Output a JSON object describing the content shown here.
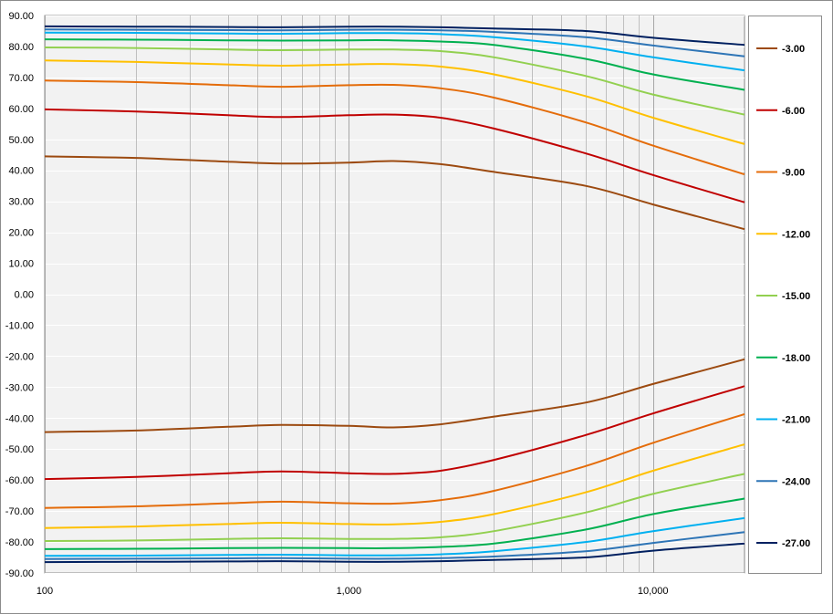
{
  "chart_data": {
    "type": "line",
    "x_scale": "log",
    "xlim": [
      100,
      20000
    ],
    "ylim": [
      -90,
      90
    ],
    "grid": true,
    "legend_position": "right",
    "title": "",
    "xlabel": "",
    "ylabel": "",
    "x_tick_labels": [
      {
        "value": 100,
        "label": "100"
      },
      {
        "value": 1000,
        "label": "1,000"
      },
      {
        "value": 10000,
        "label": "10,000"
      }
    ],
    "y_tick_labels": [
      {
        "value": 90,
        "label": "90.00"
      },
      {
        "value": 80,
        "label": "80.00"
      },
      {
        "value": 70,
        "label": "70.00"
      },
      {
        "value": 60,
        "label": "60.00"
      },
      {
        "value": 50,
        "label": "50.00"
      },
      {
        "value": 40,
        "label": "40.00"
      },
      {
        "value": 30,
        "label": "30.00"
      },
      {
        "value": 20,
        "label": "20.00"
      },
      {
        "value": 10,
        "label": "10.00"
      },
      {
        "value": 0,
        "label": "0.00"
      },
      {
        "value": -10,
        "label": "-10.00"
      },
      {
        "value": -20,
        "label": "-20.00"
      },
      {
        "value": -30,
        "label": "-30.00"
      },
      {
        "value": -40,
        "label": "-40.00"
      },
      {
        "value": -50,
        "label": "-50.00"
      },
      {
        "value": -60,
        "label": "-60.00"
      },
      {
        "value": -70,
        "label": "-70.00"
      },
      {
        "value": -80,
        "label": "-80.00"
      },
      {
        "value": -90,
        "label": "-90.00"
      }
    ],
    "x": [
      100,
      200,
      400,
      600,
      1000,
      1400,
      2000,
      3000,
      6000,
      10000,
      20000
    ],
    "series": [
      {
        "name": "-3.00",
        "color": "#9C4A10",
        "values": [
          44.5,
          44.0,
          42.8,
          42.2,
          42.5,
          43.0,
          42.0,
          39.5,
          35.0,
          29.0,
          21.0
        ]
      },
      {
        "name": "-6.00",
        "color": "#C00000",
        "values": [
          59.7,
          59.0,
          57.8,
          57.2,
          57.8,
          58.0,
          57.0,
          53.5,
          45.5,
          38.5,
          29.7
        ]
      },
      {
        "name": "-9.00",
        "color": "#E46C0A",
        "values": [
          69.0,
          68.5,
          67.5,
          67.0,
          67.5,
          67.6,
          66.5,
          63.5,
          55.5,
          48.0,
          38.7
        ]
      },
      {
        "name": "-12.00",
        "color": "#FFC000",
        "values": [
          75.5,
          75.0,
          74.2,
          73.8,
          74.2,
          74.3,
          73.5,
          71.0,
          64.0,
          57.0,
          48.5
        ]
      },
      {
        "name": "-15.00",
        "color": "#92D050",
        "values": [
          79.7,
          79.5,
          79.0,
          78.8,
          79.0,
          79.0,
          78.5,
          76.5,
          70.5,
          64.5,
          58.0
        ]
      },
      {
        "name": "-18.00",
        "color": "#00B050",
        "values": [
          82.3,
          82.2,
          82.0,
          81.9,
          82.0,
          82.0,
          81.6,
          80.5,
          76.0,
          71.0,
          66.0
        ]
      },
      {
        "name": "-21.00",
        "color": "#00B0F0",
        "values": [
          84.5,
          84.4,
          84.2,
          84.1,
          84.3,
          84.3,
          84.0,
          83.0,
          80.0,
          76.5,
          72.3
        ]
      },
      {
        "name": "-24.00",
        "color": "#2E75B6",
        "values": [
          85.5,
          85.4,
          85.3,
          85.2,
          85.4,
          85.4,
          85.2,
          84.7,
          83.0,
          80.3,
          76.8
        ]
      },
      {
        "name": "-27.00",
        "color": "#002060",
        "values": [
          86.5,
          86.4,
          86.3,
          86.2,
          86.4,
          86.4,
          86.2,
          85.8,
          85.0,
          82.8,
          80.5
        ]
      }
    ],
    "mirror_negative": true
  }
}
